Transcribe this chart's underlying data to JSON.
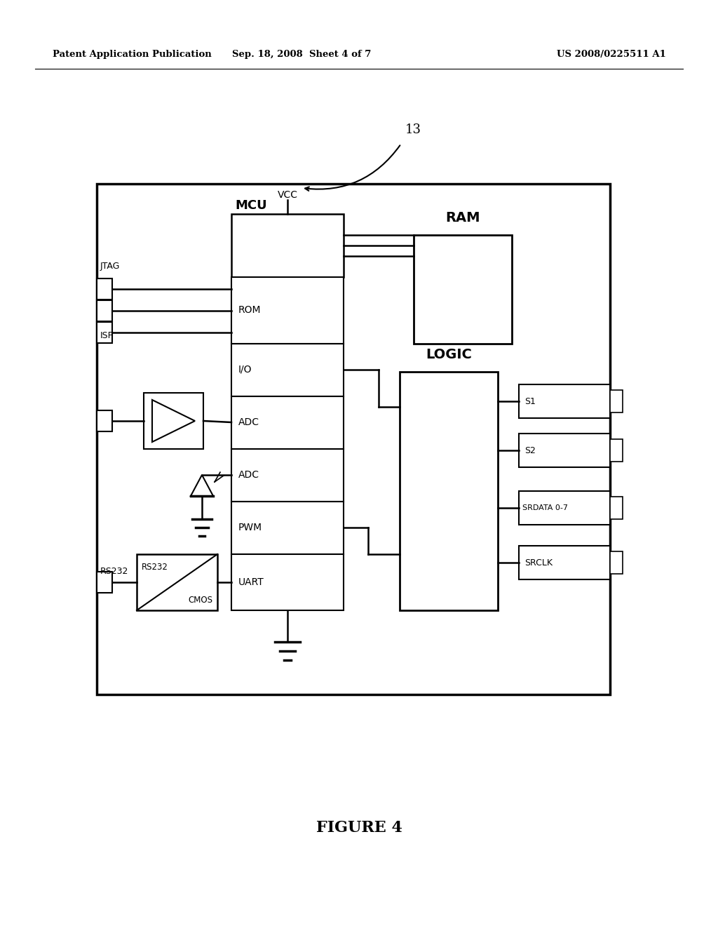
{
  "bg_color": "#ffffff",
  "header_left": "Patent Application Publication",
  "header_mid": "Sep. 18, 2008  Sheet 4 of 7",
  "header_right": "US 2008/0225511 A1",
  "figure_label": "FIGURE 4",
  "label_13": "13",
  "vcc_label": "VCC",
  "mcu_label": "MCU",
  "ram_label": "RAM",
  "logic_label": "LOGIC",
  "jtag_label": "JTAG",
  "isp_label": "ISP",
  "rs232_label": "RS232",
  "rom_label": "ROM",
  "io_label": "I/O",
  "adc1_label": "ADC",
  "adc2_label": "ADC",
  "pwm_label": "PWM",
  "uart_label": "UART",
  "s1_label": "S1",
  "s2_label": "S2",
  "srdata_label": "SRDATA 0-7",
  "srclk_label": "SRCLK",
  "rs232_cmos_label1": "RS232",
  "rs232_cmos_label2": "CMOS"
}
